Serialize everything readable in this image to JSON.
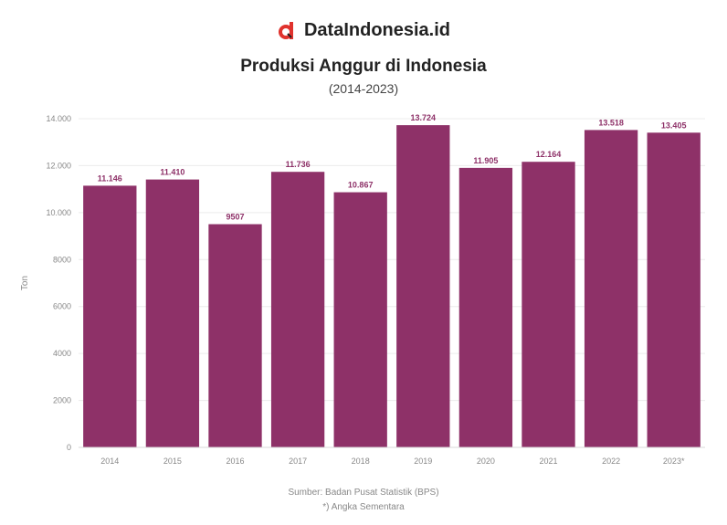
{
  "brand": {
    "name": "DataIndonesia.id",
    "logo_icon": "data-indonesia-logo-icon",
    "logo_color": "#e0322d"
  },
  "header": {
    "title": "Produksi Anggur di Indonesia",
    "subtitle": "(2014-2023)"
  },
  "footer": {
    "source": "Sumber: Badan Pusat Statistik (BPS)",
    "note": "*) Angka Sementara"
  },
  "chart_data": {
    "type": "bar",
    "categories": [
      "2014",
      "2015",
      "2016",
      "2017",
      "2018",
      "2019",
      "2020",
      "2021",
      "2022",
      "2023*"
    ],
    "values": [
      11146,
      11410,
      9507,
      11736,
      10867,
      13724,
      11905,
      12164,
      13518,
      13405
    ],
    "value_labels": [
      "11.146",
      "11.410",
      "9507",
      "11.736",
      "10.867",
      "13.724",
      "11.905",
      "12.164",
      "13.518",
      "13.405"
    ],
    "ylabel": "Ton",
    "ylim": [
      0,
      14000
    ],
    "yticks": [
      0,
      2000,
      4000,
      6000,
      8000,
      10000,
      12000,
      14000
    ],
    "ytick_labels": [
      "0",
      "2000",
      "4000",
      "6000",
      "8000",
      "10.000",
      "12.000",
      "14.000"
    ],
    "grid": true,
    "bar_color": "#8e3168",
    "label_color": "#8e3168"
  }
}
